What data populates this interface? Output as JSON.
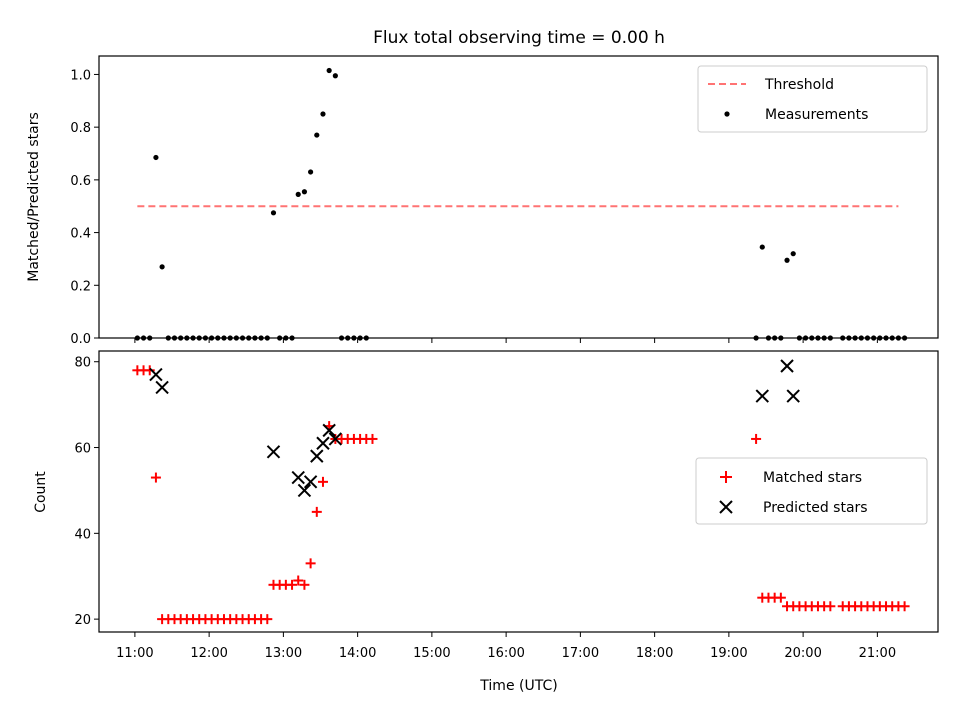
{
  "title": "Flux total observing time = 0.00 h",
  "chart_data": [
    {
      "type": "scatter",
      "ylabel": "Matched/Predicted stars",
      "ylim": [
        0,
        1.07
      ],
      "yticks": [
        0.0,
        0.2,
        0.4,
        0.6,
        0.8,
        1.0
      ],
      "ytick_labels": [
        "0.0",
        "0.2",
        "0.4",
        "0.6",
        "0.8",
        "1.0"
      ],
      "legend_position": "upper right",
      "threshold": {
        "name": "Threshold",
        "value": 0.5,
        "x_start": "11:02",
        "x_end": "21:17",
        "color": "#ff7373",
        "style": "dashed"
      },
      "series": [
        {
          "name": "Measurements",
          "color": "#000000",
          "marker": "dot",
          "points": [
            [
              "11:02",
              0
            ],
            [
              "11:07",
              0
            ],
            [
              "11:12",
              0
            ],
            [
              "11:17",
              0.685
            ],
            [
              "11:22",
              0.27
            ],
            [
              "11:27",
              0
            ],
            [
              "11:32",
              0
            ],
            [
              "11:37",
              0
            ],
            [
              "11:42",
              0
            ],
            [
              "11:47",
              0
            ],
            [
              "11:52",
              0
            ],
            [
              "11:57",
              0
            ],
            [
              "12:02",
              0
            ],
            [
              "12:07",
              0
            ],
            [
              "12:12",
              0
            ],
            [
              "12:17",
              0
            ],
            [
              "12:22",
              0
            ],
            [
              "12:27",
              0
            ],
            [
              "12:32",
              0
            ],
            [
              "12:37",
              0
            ],
            [
              "12:42",
              0
            ],
            [
              "12:47",
              0
            ],
            [
              "12:52",
              0.475
            ],
            [
              "12:57",
              0
            ],
            [
              "13:02",
              0
            ],
            [
              "13:07",
              0
            ],
            [
              "13:12",
              0.545
            ],
            [
              "13:17",
              0.555
            ],
            [
              "13:22",
              0.63
            ],
            [
              "13:27",
              0.77
            ],
            [
              "13:32",
              0.85
            ],
            [
              "13:37",
              1.015
            ],
            [
              "13:42",
              0.995
            ],
            [
              "13:47",
              0
            ],
            [
              "13:52",
              0
            ],
            [
              "13:57",
              0
            ],
            [
              "14:02",
              0
            ],
            [
              "14:07",
              0
            ],
            [
              "19:22",
              0
            ],
            [
              "19:27",
              0.345
            ],
            [
              "19:32",
              0
            ],
            [
              "19:37",
              0
            ],
            [
              "19:42",
              0
            ],
            [
              "19:47",
              0.295
            ],
            [
              "19:52",
              0.32
            ],
            [
              "19:57",
              0
            ],
            [
              "20:02",
              0
            ],
            [
              "20:07",
              0
            ],
            [
              "20:12",
              0
            ],
            [
              "20:17",
              0
            ],
            [
              "20:22",
              0
            ],
            [
              "20:32",
              0
            ],
            [
              "20:37",
              0
            ],
            [
              "20:42",
              0
            ],
            [
              "20:47",
              0
            ],
            [
              "20:52",
              0
            ],
            [
              "20:57",
              0
            ],
            [
              "21:02",
              0
            ],
            [
              "21:07",
              0
            ],
            [
              "21:12",
              0
            ],
            [
              "21:17",
              0
            ],
            [
              "21:22",
              0
            ]
          ]
        }
      ]
    },
    {
      "type": "scatter",
      "xlabel": "Time (UTC)",
      "ylabel": "Count",
      "xlim": [
        "10:31",
        "21:49"
      ],
      "ylim": [
        17,
        82.5
      ],
      "xticks": [
        "11:00",
        "12:00",
        "13:00",
        "14:00",
        "15:00",
        "16:00",
        "17:00",
        "18:00",
        "19:00",
        "20:00",
        "21:00"
      ],
      "yticks": [
        20,
        40,
        60,
        80
      ],
      "ytick_labels": [
        "20",
        "40",
        "60",
        "80"
      ],
      "legend_position": "center right",
      "series": [
        {
          "name": "Matched stars",
          "color": "#ff0000",
          "marker": "plus",
          "points": [
            [
              "11:02",
              78
            ],
            [
              "11:07",
              78
            ],
            [
              "11:12",
              78
            ],
            [
              "11:17",
              53
            ],
            [
              "11:22",
              20
            ],
            [
              "11:27",
              20
            ],
            [
              "11:32",
              20
            ],
            [
              "11:37",
              20
            ],
            [
              "11:42",
              20
            ],
            [
              "11:47",
              20
            ],
            [
              "11:52",
              20
            ],
            [
              "11:57",
              20
            ],
            [
              "12:02",
              20
            ],
            [
              "12:07",
              20
            ],
            [
              "12:12",
              20
            ],
            [
              "12:17",
              20
            ],
            [
              "12:22",
              20
            ],
            [
              "12:27",
              20
            ],
            [
              "12:32",
              20
            ],
            [
              "12:37",
              20
            ],
            [
              "12:42",
              20
            ],
            [
              "12:47",
              20
            ],
            [
              "12:52",
              28
            ],
            [
              "12:57",
              28
            ],
            [
              "13:02",
              28
            ],
            [
              "13:07",
              28
            ],
            [
              "13:12",
              29
            ],
            [
              "13:17",
              28
            ],
            [
              "13:22",
              33
            ],
            [
              "13:27",
              45
            ],
            [
              "13:32",
              52
            ],
            [
              "13:37",
              65
            ],
            [
              "13:42",
              62
            ],
            [
              "13:47",
              62
            ],
            [
              "13:52",
              62
            ],
            [
              "13:57",
              62
            ],
            [
              "14:02",
              62
            ],
            [
              "14:07",
              62
            ],
            [
              "14:12",
              62
            ],
            [
              "19:22",
              62
            ],
            [
              "19:27",
              25
            ],
            [
              "19:32",
              25
            ],
            [
              "19:37",
              25
            ],
            [
              "19:42",
              25
            ],
            [
              "19:47",
              23
            ],
            [
              "19:52",
              23
            ],
            [
              "19:57",
              23
            ],
            [
              "20:02",
              23
            ],
            [
              "20:07",
              23
            ],
            [
              "20:12",
              23
            ],
            [
              "20:17",
              23
            ],
            [
              "20:22",
              23
            ],
            [
              "20:32",
              23
            ],
            [
              "20:37",
              23
            ],
            [
              "20:42",
              23
            ],
            [
              "20:47",
              23
            ],
            [
              "20:52",
              23
            ],
            [
              "20:57",
              23
            ],
            [
              "21:02",
              23
            ],
            [
              "21:07",
              23
            ],
            [
              "21:12",
              23
            ],
            [
              "21:17",
              23
            ],
            [
              "21:22",
              23
            ]
          ]
        },
        {
          "name": "Predicted stars",
          "color": "#000000",
          "marker": "x",
          "points": [
            [
              "11:17",
              77
            ],
            [
              "11:22",
              74
            ],
            [
              "12:52",
              59
            ],
            [
              "13:12",
              53
            ],
            [
              "13:17",
              50
            ],
            [
              "13:22",
              52
            ],
            [
              "13:27",
              58
            ],
            [
              "13:32",
              61
            ],
            [
              "13:37",
              64
            ],
            [
              "13:42",
              62
            ],
            [
              "19:27",
              72
            ],
            [
              "19:47",
              79
            ],
            [
              "19:52",
              72
            ]
          ]
        }
      ]
    }
  ]
}
